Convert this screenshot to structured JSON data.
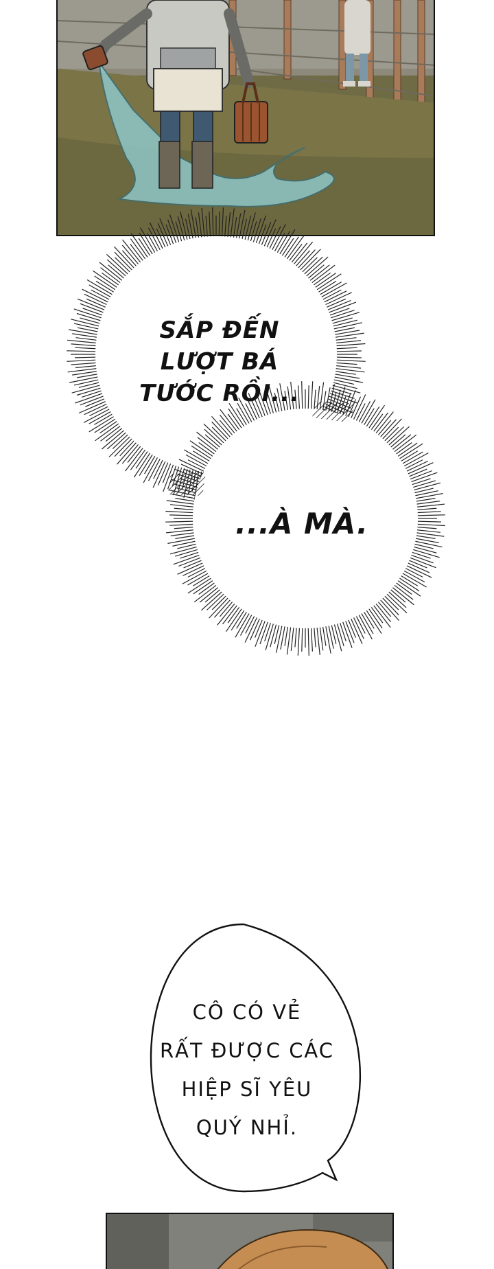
{
  "bubbles": {
    "shout_1": "SẮP ĐẾN\nLƯỢT BÁ\nTƯỚC RỒI...",
    "shout_2": "...À MÀ.",
    "speech_1": "CÔ CÓ VẺ\nRẤT ĐƯỢC CÁC\nHIỆP SĨ YÊU\nQUÝ NHỈ."
  },
  "colors": {
    "ground": "#6f6b45",
    "water": "#8fc6c8",
    "fence": "#8a6f52",
    "ink": "#111111"
  }
}
